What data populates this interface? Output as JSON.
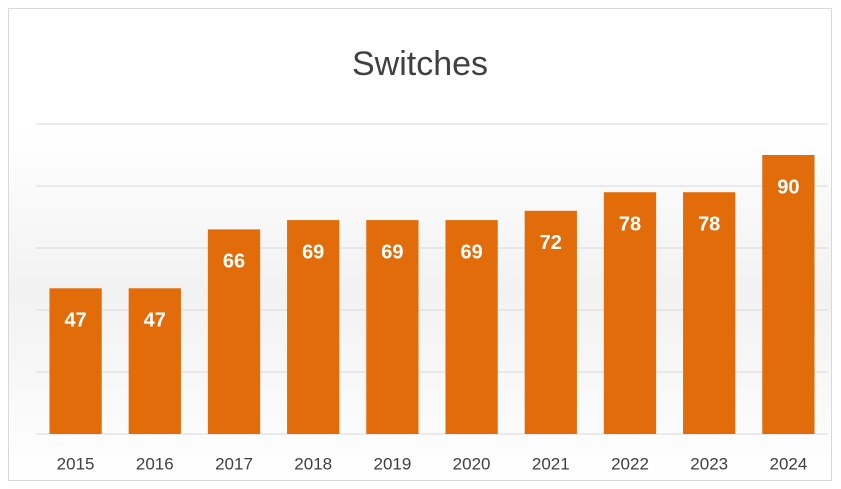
{
  "chart_data": {
    "type": "bar",
    "title": "Switches",
    "categories": [
      "2015",
      "2016",
      "2017",
      "2018",
      "2019",
      "2020",
      "2021",
      "2022",
      "2023",
      "2024"
    ],
    "values": [
      47,
      47,
      66,
      69,
      69,
      69,
      72,
      78,
      78,
      90
    ],
    "color": "#e36c0a",
    "ylim": [
      0,
      100
    ],
    "yticks": [
      0,
      20,
      40,
      60,
      80,
      100
    ],
    "grid": true
  }
}
